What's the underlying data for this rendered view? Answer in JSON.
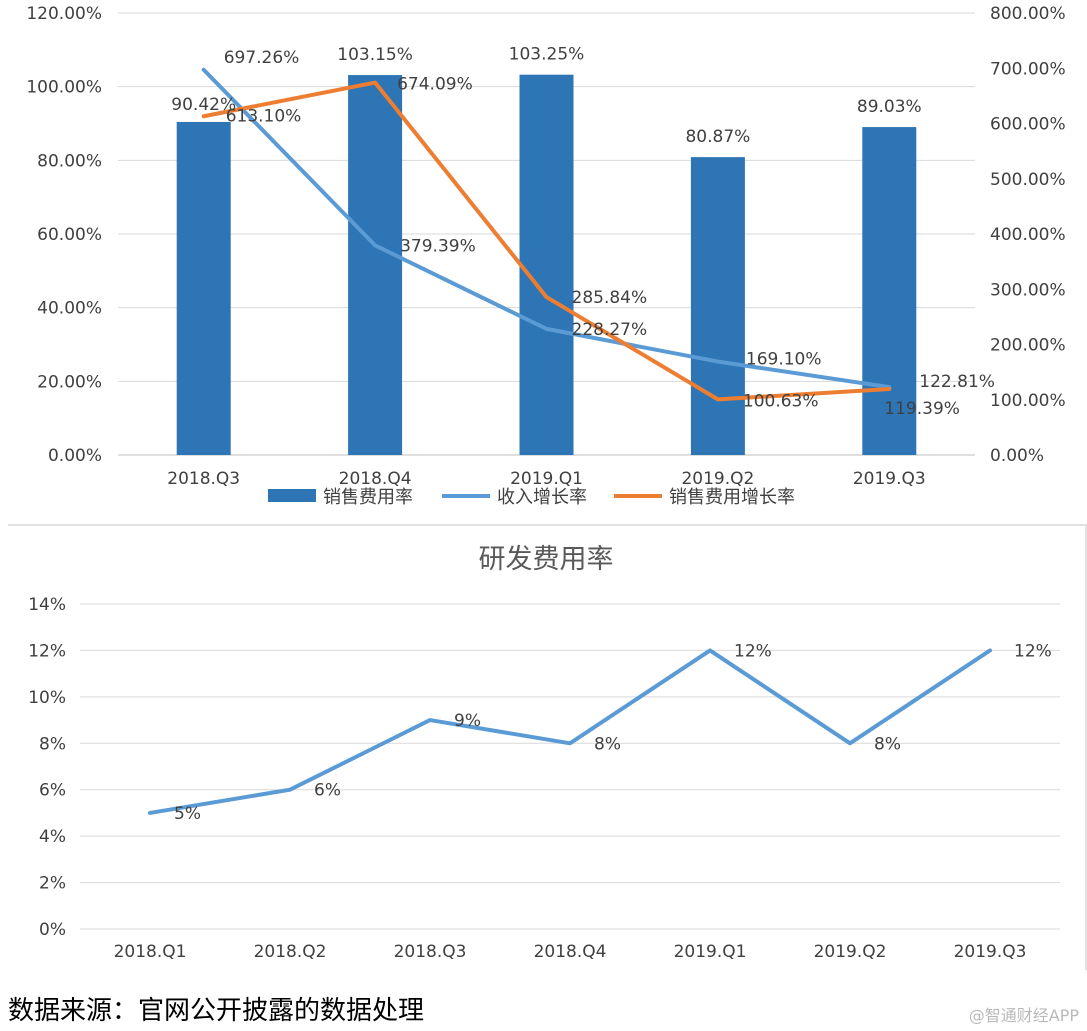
{
  "chart_data": [
    {
      "type": "bar+line",
      "title": "",
      "categories": [
        "2018.Q3",
        "2018.Q4",
        "2019.Q1",
        "2019.Q2",
        "2019.Q3"
      ],
      "y_left": {
        "min": 0,
        "max": 120,
        "step": 20,
        "tick_labels": [
          "0.00%",
          "20.00%",
          "40.00%",
          "60.00%",
          "80.00%",
          "100.00%",
          "120.00%"
        ]
      },
      "y_right": {
        "min": 0,
        "max": 800,
        "step": 100,
        "tick_labels": [
          "0.00%",
          "100.00%",
          "200.00%",
          "300.00%",
          "400.00%",
          "500.00%",
          "600.00%",
          "700.00%",
          "800.00%"
        ]
      },
      "grid": true,
      "legend_position": "bottom",
      "colors": {
        "bar": "#2e75b6",
        "line_revenue": "#5b9bd5",
        "line_sales_growth": "#ed7d31",
        "grid": "#d9d9d9"
      },
      "series": [
        {
          "name": "销售费用率",
          "kind": "bar",
          "axis": "left",
          "values": [
            90.42,
            103.15,
            103.25,
            80.87,
            89.03
          ],
          "labels": [
            "90.42%",
            "103.15%",
            "103.25%",
            "80.87%",
            "89.03%"
          ]
        },
        {
          "name": "收入增长率",
          "kind": "line",
          "axis": "right",
          "values": [
            697.26,
            379.39,
            228.27,
            169.1,
            122.81
          ],
          "labels": [
            "697.26%",
            "379.39%",
            "228.27%",
            "169.10%",
            "122.81%"
          ]
        },
        {
          "name": "销售费用增长率",
          "kind": "line",
          "axis": "right",
          "values": [
            613.1,
            674.09,
            285.84,
            100.63,
            119.39
          ],
          "labels": [
            "613.10%",
            "674.09%",
            "285.84%",
            "100.63%",
            "119.39%"
          ]
        }
      ]
    },
    {
      "type": "line",
      "title": "研发费用率",
      "categories": [
        "2018.Q1",
        "2018.Q2",
        "2018.Q3",
        "2018.Q4",
        "2019.Q1",
        "2019.Q2",
        "2019.Q3"
      ],
      "y": {
        "min": 0,
        "max": 14,
        "step": 2,
        "tick_labels": [
          "0%",
          "2%",
          "4%",
          "6%",
          "8%",
          "10%",
          "12%",
          "14%"
        ]
      },
      "grid": true,
      "colors": {
        "line": "#5b9bd5",
        "grid": "#d9d9d9"
      },
      "series": [
        {
          "name": "研发费用率",
          "values": [
            5,
            6,
            9,
            8,
            12,
            8,
            12
          ],
          "labels": [
            "5%",
            "6%",
            "9%",
            "8%",
            "12%",
            "8%",
            "12%"
          ]
        }
      ]
    }
  ],
  "footer": {
    "source": "数据来源：官网公开披露的数据处理",
    "watermark": "@智通财经APP"
  }
}
